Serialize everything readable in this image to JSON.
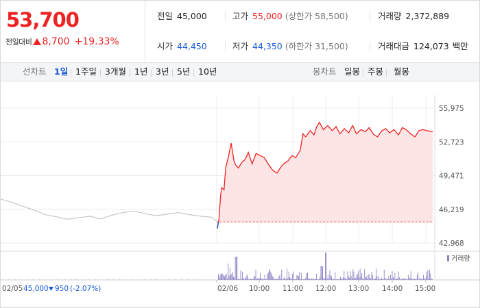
{
  "header": {
    "price": "53,700",
    "change_label": "전일대비",
    "change_amount": "8,700",
    "change_percent": "+19.33%",
    "stats": {
      "prev_close": {
        "label": "전일",
        "value": "45,000"
      },
      "high": {
        "label": "고가",
        "value": "55,000",
        "sub": "(상한가 58,500)"
      },
      "volume": {
        "label": "거래량",
        "value": "2,372,889"
      },
      "open": {
        "label": "시가",
        "value": "44,450"
      },
      "low": {
        "label": "저가",
        "value": "44,350",
        "sub": "(하한가 31,500)"
      },
      "value_traded": {
        "label": "거래대금",
        "value": "124,073",
        "unit": "백만"
      }
    },
    "colors": {
      "up": "#e22222",
      "down": "#1a5ad7"
    }
  },
  "periods": {
    "label": "선차트",
    "items": [
      "1일",
      "1주일",
      "3개월",
      "1년",
      "3년",
      "5년",
      "10년"
    ],
    "active": "1일"
  },
  "candle": {
    "label": "봉차트",
    "items": [
      "일봉",
      "주봉",
      "월봉"
    ]
  },
  "chart_data": {
    "type": "line",
    "y_ticks": [
      "55,975",
      "52,723",
      "49,471",
      "46,219",
      "42,968"
    ],
    "ylim": [
      42968,
      55975
    ],
    "prev_close": 45000,
    "volume_legend": "거래량",
    "x_labels": [
      "02/06",
      "10:00",
      "11:00",
      "12:00",
      "13:00",
      "14:00",
      "15:00"
    ],
    "prev_day": {
      "date": "02/05",
      "close": "45,000",
      "change": "950",
      "change_percent": "(-2.07%)",
      "series_minutes": [
        0,
        20,
        40,
        60,
        80,
        100,
        120,
        140,
        160,
        180,
        200,
        220,
        240,
        260,
        280,
        300,
        320,
        340,
        360,
        380,
        390
      ],
      "series_prices": [
        47200,
        46900,
        46500,
        46150,
        45700,
        45500,
        45250,
        45400,
        45550,
        45300,
        45650,
        45900,
        46050,
        45800,
        45600,
        45750,
        45900,
        45700,
        45550,
        45450,
        45000
      ]
    },
    "today": {
      "series_minutes": [
        0,
        3,
        6,
        8,
        12,
        15,
        20,
        25,
        30,
        33,
        38,
        45,
        50,
        56,
        63,
        70,
        78,
        85,
        92,
        100,
        108,
        115,
        120,
        128,
        135,
        142,
        150,
        155,
        160,
        168,
        175,
        180,
        185,
        192,
        200,
        208,
        215,
        222,
        230,
        238,
        245,
        252,
        260,
        268,
        275,
        282,
        290,
        298,
        305,
        312,
        320,
        328,
        335,
        342,
        350,
        358,
        365,
        372,
        380,
        390
      ],
      "series_prices": [
        44450,
        45300,
        47600,
        48300,
        48100,
        50200,
        51300,
        52600,
        50900,
        50500,
        50200,
        50800,
        51000,
        51700,
        50600,
        51600,
        51400,
        51200,
        50600,
        50000,
        49700,
        50300,
        50600,
        50900,
        51400,
        51200,
        51900,
        53500,
        53200,
        53800,
        53400,
        54200,
        54600,
        53900,
        54300,
        53800,
        54200,
        53500,
        54000,
        53600,
        54300,
        53500,
        53900,
        53700,
        54100,
        53500,
        53200,
        53800,
        54000,
        53600,
        53900,
        53400,
        54100,
        53900,
        53500,
        53200,
        53800,
        53900,
        53800,
        53700
      ]
    }
  }
}
